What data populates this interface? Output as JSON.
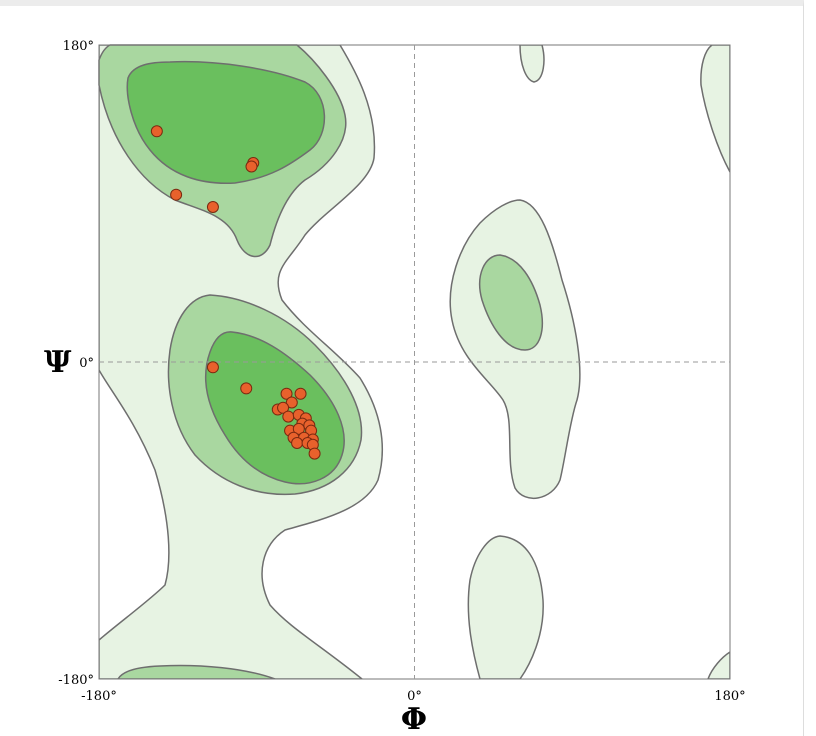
{
  "chart_data": {
    "type": "scatter",
    "xlabel": "Φ",
    "ylabel": "Ψ",
    "xlim": [
      -180,
      180
    ],
    "ylim": [
      -180,
      180
    ],
    "x_ticks": [
      {
        "value": -180,
        "label": "-180°"
      },
      {
        "value": 0,
        "label": "0°"
      },
      {
        "value": 180,
        "label": "180°"
      }
    ],
    "y_ticks": [
      {
        "value": -180,
        "label": "-180°"
      },
      {
        "value": 0,
        "label": "0°"
      },
      {
        "value": 180,
        "label": "180°"
      }
    ],
    "region_colors": {
      "allowed": "#e7f3e3",
      "favored": "#a9d7a0",
      "core": "#6abf5e",
      "contour": "#6e6e6e"
    },
    "point_color": "#e8612c",
    "point_edge": "#7a2a10",
    "points": [
      {
        "x": -147,
        "y": 131
      },
      {
        "x": -92,
        "y": 113
      },
      {
        "x": -93,
        "y": 111
      },
      {
        "x": -136,
        "y": 95
      },
      {
        "x": -115,
        "y": 88
      },
      {
        "x": -115,
        "y": -3
      },
      {
        "x": -96,
        "y": -15
      },
      {
        "x": -73,
        "y": -18
      },
      {
        "x": -65,
        "y": -18
      },
      {
        "x": -70,
        "y": -23
      },
      {
        "x": -78,
        "y": -27
      },
      {
        "x": -75,
        "y": -26
      },
      {
        "x": -72,
        "y": -31
      },
      {
        "x": -66,
        "y": -30
      },
      {
        "x": -62,
        "y": -32
      },
      {
        "x": -64,
        "y": -35
      },
      {
        "x": -60,
        "y": -36
      },
      {
        "x": -71,
        "y": -39
      },
      {
        "x": -66,
        "y": -38
      },
      {
        "x": -59,
        "y": -39
      },
      {
        "x": -69,
        "y": -43
      },
      {
        "x": -63,
        "y": -43
      },
      {
        "x": -58,
        "y": -44
      },
      {
        "x": -67,
        "y": -46
      },
      {
        "x": -61,
        "y": -46
      },
      {
        "x": -58,
        "y": -47
      },
      {
        "x": -57,
        "y": -52
      }
    ]
  }
}
